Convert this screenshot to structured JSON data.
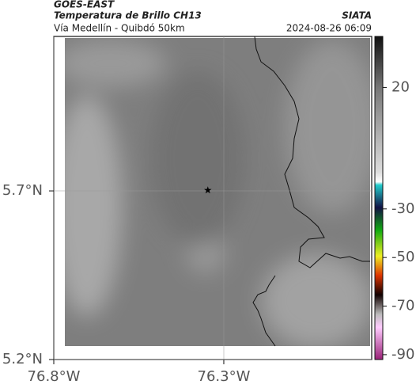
{
  "header": {
    "source": "GOES-EAST",
    "title": "Temperatura de Brillo CH13",
    "org": "SIATA",
    "subtitle": "Vía Medellín - Quibdó 50km",
    "datetime": "2024-08-26 06:09"
  },
  "map": {
    "xlim": [
      -76.8,
      -75.865
    ],
    "ylim": [
      5.2,
      6.158
    ],
    "xticks": [
      {
        "value": -76.8,
        "label": "76.8°W"
      },
      {
        "value": -76.3,
        "label": "76.3°W"
      }
    ],
    "yticks": [
      {
        "value": 5.2,
        "label": "5.2°N"
      },
      {
        "value": 5.7,
        "label": "5.7°N"
      }
    ],
    "grid": true,
    "station": {
      "lon": -76.347,
      "lat": 5.702
    }
  },
  "colorbar": {
    "clim": [
      -92,
      41
    ],
    "ticks": [
      20,
      -30,
      -50,
      -70,
      -90
    ]
  }
}
